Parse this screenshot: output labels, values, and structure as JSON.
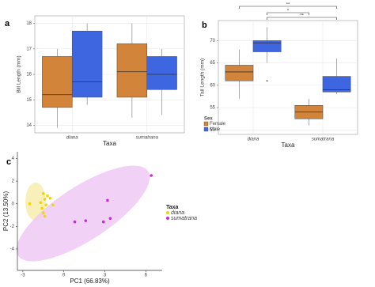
{
  "chart_data": [
    {
      "type": "box",
      "panel": "a",
      "ylabel": "Bill Length (mm)",
      "xlabel": "Taxa",
      "categories": [
        "diana",
        "sumatrana"
      ],
      "ylim": [
        13.7,
        18.3
      ],
      "yticks": [
        14,
        15,
        16,
        17,
        18
      ],
      "grid": true,
      "series": [
        {
          "color": "#d2843a",
          "boxes": [
            {
              "min": 13.9,
              "q1": 14.7,
              "median": 15.2,
              "q3": 16.7,
              "max": 17.0
            },
            {
              "min": 14.3,
              "q1": 15.1,
              "median": 16.1,
              "q3": 17.2,
              "max": 18.0
            }
          ]
        },
        {
          "color": "#3d66e0",
          "boxes": [
            {
              "min": 14.8,
              "q1": 15.1,
              "median": 15.7,
              "q3": 17.7,
              "max": 18.0
            },
            {
              "min": 14.4,
              "q1": 15.4,
              "median": 16.0,
              "q3": 16.7,
              "max": 17.0
            }
          ]
        }
      ]
    },
    {
      "type": "box",
      "panel": "b",
      "ylabel": "Tail Length (mm)",
      "xlabel": "Taxa",
      "categories": [
        "diana",
        "sumatrana"
      ],
      "ylim": [
        49,
        74.5
      ],
      "yticks": [
        50,
        55,
        60,
        65,
        70
      ],
      "grid": true,
      "legend_title": "Sex",
      "annotations": [
        "**",
        "*",
        "**"
      ],
      "series": [
        {
          "name": "Female",
          "color": "#d2843a",
          "boxes": [
            {
              "min": 57,
              "q1": 61,
              "median": 63,
              "q3": 64.5,
              "max": 68
            },
            {
              "min": 51,
              "q1": 52.5,
              "median": 54,
              "q3": 55.5,
              "max": 57
            }
          ]
        },
        {
          "name": "Male",
          "color": "#3d66e0",
          "boxes": [
            {
              "min": 65,
              "q1": 67.5,
              "median": 69.5,
              "q3": 70,
              "max": 73,
              "outliers": [
                61
              ]
            },
            {
              "min": 58,
              "q1": 58.5,
              "median": 59,
              "q3": 62,
              "max": 66
            }
          ]
        }
      ]
    },
    {
      "type": "scatter",
      "panel": "c",
      "xlabel": "PC1 (66.83%)",
      "ylabel": "PC2 (13.50%)",
      "xlim": [
        -3.4,
        7.2
      ],
      "xticks": [
        -3,
        0,
        3,
        6
      ],
      "ylim": [
        -5.9,
        4.6
      ],
      "yticks": [
        -4,
        -2,
        0,
        2,
        4
      ],
      "legend_title": "Taxa",
      "series": [
        {
          "name": "diana",
          "color": "#f2d600",
          "x": [
            -1.5,
            -1.2,
            -1.4,
            -1.0,
            -1.7,
            -1.3,
            -0.8,
            -1.6,
            -1.5,
            -2.5,
            -1.4
          ],
          "y": [
            0.9,
            0.7,
            0.4,
            0.5,
            0.1,
            -0.1,
            -0.1,
            -0.4,
            -0.8,
            0.0,
            -1.1
          ]
        },
        {
          "name": "sumatrana",
          "color": "#c42ad6",
          "x": [
            6.4,
            3.2,
            0.8,
            1.6,
            2.9,
            3.4
          ],
          "y": [
            2.5,
            0.3,
            -1.6,
            -1.5,
            -1.6,
            -1.3
          ]
        }
      ]
    }
  ]
}
